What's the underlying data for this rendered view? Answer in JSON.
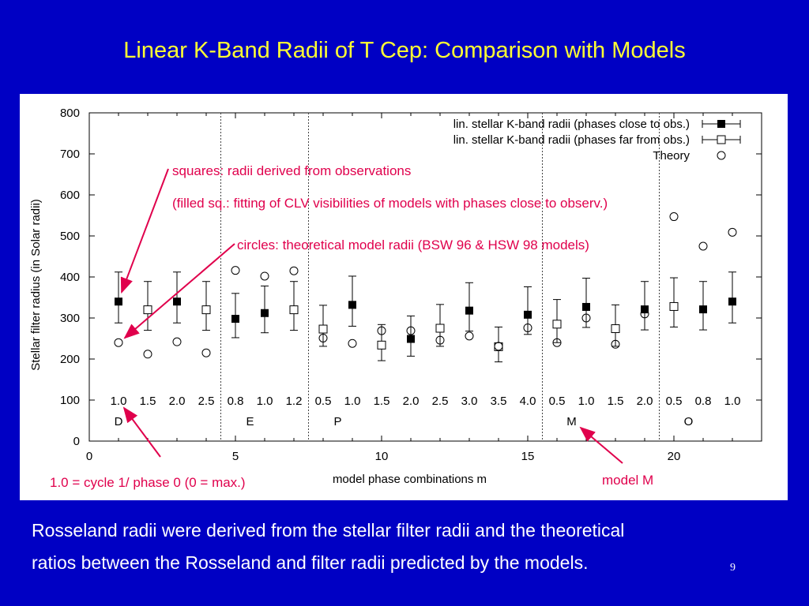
{
  "slide": {
    "title": "Linear K-Band Radii of T Cep: Comparison with Models",
    "caption_line1": "Rosseland radii were derived from the stellar filter radii and the theoretical",
    "caption_line2": "ratios between the Rosseland and filter radii predicted by the models.",
    "page_number": "9"
  },
  "chart_data": {
    "type": "scatter",
    "xlabel": "model phase combinations m",
    "ylabel": "Stellar filter radius (in Solar radii)",
    "xlim": [
      0,
      23
    ],
    "ylim": [
      0,
      800
    ],
    "x_ticks": [
      0,
      5,
      10,
      15,
      20
    ],
    "y_ticks": [
      0,
      100,
      200,
      300,
      400,
      500,
      600,
      700,
      800
    ],
    "grid": false,
    "legend_position": "top-right",
    "legend": [
      "lin. stellar K-band radii (phases close to obs.)",
      "lin. stellar K-band radii (phases far from obs.)",
      "Theory"
    ],
    "group_separators_x": [
      4.5,
      7.5,
      15.5,
      19.5
    ],
    "phase_labels": [
      {
        "x": 1,
        "label": "1.0"
      },
      {
        "x": 2,
        "label": "1.5"
      },
      {
        "x": 3,
        "label": "2.0"
      },
      {
        "x": 4,
        "label": "2.5"
      },
      {
        "x": 5,
        "label": "0.8"
      },
      {
        "x": 6,
        "label": "1.0"
      },
      {
        "x": 7,
        "label": "1.2"
      },
      {
        "x": 8,
        "label": "0.5"
      },
      {
        "x": 9,
        "label": "1.0"
      },
      {
        "x": 10,
        "label": "1.5"
      },
      {
        "x": 11,
        "label": "2.0"
      },
      {
        "x": 12,
        "label": "2.5"
      },
      {
        "x": 13,
        "label": "3.0"
      },
      {
        "x": 14,
        "label": "3.5"
      },
      {
        "x": 15,
        "label": "4.0"
      },
      {
        "x": 16,
        "label": "0.5"
      },
      {
        "x": 17,
        "label": "1.0"
      },
      {
        "x": 18,
        "label": "1.5"
      },
      {
        "x": 19,
        "label": "2.0"
      },
      {
        "x": 20,
        "label": "0.5"
      },
      {
        "x": 21,
        "label": "0.8"
      },
      {
        "x": 22,
        "label": "1.0"
      }
    ],
    "model_labels": [
      {
        "x": 1,
        "label": "D"
      },
      {
        "x": 5.5,
        "label": "E"
      },
      {
        "x": 8.5,
        "label": "P"
      },
      {
        "x": 16.5,
        "label": "M"
      },
      {
        "x": 20.5,
        "label": "O"
      }
    ],
    "series": [
      {
        "name": "lin. stellar K-band radii (phases close to obs.)",
        "marker": "filled-square",
        "x": [
          1,
          3,
          5,
          6,
          9,
          11,
          13,
          15,
          17,
          19,
          21,
          22
        ],
        "y": [
          340,
          340,
          298,
          312,
          332,
          249,
          318,
          308,
          327,
          321,
          321,
          340
        ],
        "err_low": [
          52,
          52,
          46,
          48,
          52,
          42,
          50,
          48,
          50,
          50,
          50,
          52
        ],
        "err_high": [
          72,
          72,
          62,
          66,
          70,
          56,
          68,
          68,
          70,
          68,
          68,
          72
        ]
      },
      {
        "name": "lin. stellar K-band radii (phases far from obs.)",
        "marker": "open-square",
        "x": [
          2,
          4,
          7,
          8,
          10,
          12,
          14,
          16,
          18,
          20
        ],
        "y": [
          320,
          320,
          320,
          273,
          234,
          275,
          230,
          285,
          274,
          328
        ],
        "err_low": [
          50,
          50,
          50,
          42,
          38,
          44,
          37,
          45,
          43,
          50
        ],
        "err_high": [
          69,
          69,
          69,
          58,
          50,
          58,
          48,
          60,
          58,
          70
        ]
      },
      {
        "name": "Theory",
        "marker": "open-circle",
        "x": [
          1,
          2,
          3,
          4,
          5,
          6,
          7,
          8,
          9,
          10,
          11,
          12,
          13,
          14,
          15,
          16,
          17,
          18,
          19,
          20,
          21,
          22
        ],
        "y": [
          240,
          212,
          242,
          215,
          416,
          402,
          415,
          251,
          238,
          269,
          269,
          246,
          256,
          231,
          276,
          240,
          300,
          236,
          310,
          547,
          475,
          509
        ]
      }
    ],
    "annotations": [
      {
        "id": "squares",
        "text": "squares:  radii derived from observations",
        "color": "#e0004c"
      },
      {
        "id": "filled",
        "text": "(filled sq.: fitting of CLV visibilities of models with phases close to observ.)",
        "color": "#e0004c"
      },
      {
        "id": "circles",
        "text": "circles: theoretical model radii (BSW 96 & HSW 98 models)",
        "color": "#e0004c"
      },
      {
        "id": "cycle",
        "text": "1.0 = cycle 1/ phase 0 (0 = max.)",
        "color": "#e0004c"
      },
      {
        "id": "model",
        "text": "model M",
        "color": "#e0004c"
      }
    ]
  }
}
